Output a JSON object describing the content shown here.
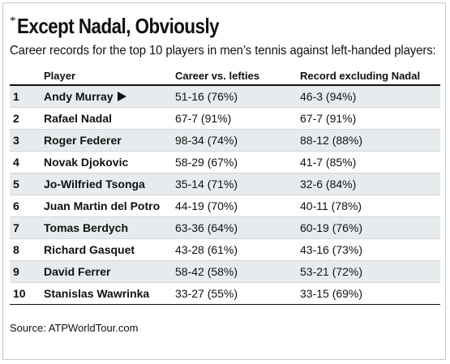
{
  "chart_data": {
    "type": "table",
    "title_prefix": "*",
    "title": "Except Nadal, Obviously",
    "subtitle": "Career records for the top 10 players in men’s tennis against left-handed players:",
    "columns": [
      "",
      "Player",
      "Career vs. lefties",
      "Record excluding Nadal"
    ],
    "rows": [
      {
        "rank": "1",
        "player": "Andy Murray",
        "marker": "arrow-right-icon",
        "career": "51-16 (76%)",
        "excluding_nadal": "46-3 (94%)",
        "highlight": true
      },
      {
        "rank": "2",
        "player": "Rafael Nadal",
        "career": "67-7 (91%)",
        "excluding_nadal": "67-7 (91%)",
        "highlight": false
      },
      {
        "rank": "3",
        "player": "Roger Federer",
        "career": "98-34 (74%)",
        "excluding_nadal": "88-12 (88%)",
        "highlight": true
      },
      {
        "rank": "4",
        "player": "Novak Djokovic",
        "career": "58-29 (67%)",
        "excluding_nadal": "41-7 (85%)",
        "highlight": false
      },
      {
        "rank": "5",
        "player": "Jo-Wilfried Tsonga",
        "career": "35-14 (71%)",
        "excluding_nadal": "32-6 (84%)",
        "highlight": true
      },
      {
        "rank": "6",
        "player": "Juan Martin del Potro",
        "career": "44-19 (70%)",
        "excluding_nadal": "40-11 (78%)",
        "highlight": false
      },
      {
        "rank": "7",
        "player": "Tomas Berdych",
        "career": "63-36 (64%)",
        "excluding_nadal": "60-19 (76%)",
        "highlight": true
      },
      {
        "rank": "8",
        "player": "Richard Gasquet",
        "career": "43-28 (61%)",
        "excluding_nadal": "43-16 (73%)",
        "highlight": false
      },
      {
        "rank": "9",
        "player": "David Ferrer",
        "career": "58-42 (58%)",
        "excluding_nadal": "53-21 (72%)",
        "highlight": true
      },
      {
        "rank": "10",
        "player": "Stanislas Wawrinka",
        "career": "33-27 (55%)",
        "excluding_nadal": "33-15 (69%)",
        "highlight": false
      }
    ],
    "source": "Source: ATPWorldTour.com",
    "colors": {
      "row_shade": "#e6ecee",
      "text": "#111111",
      "rule": "#111111"
    }
  }
}
